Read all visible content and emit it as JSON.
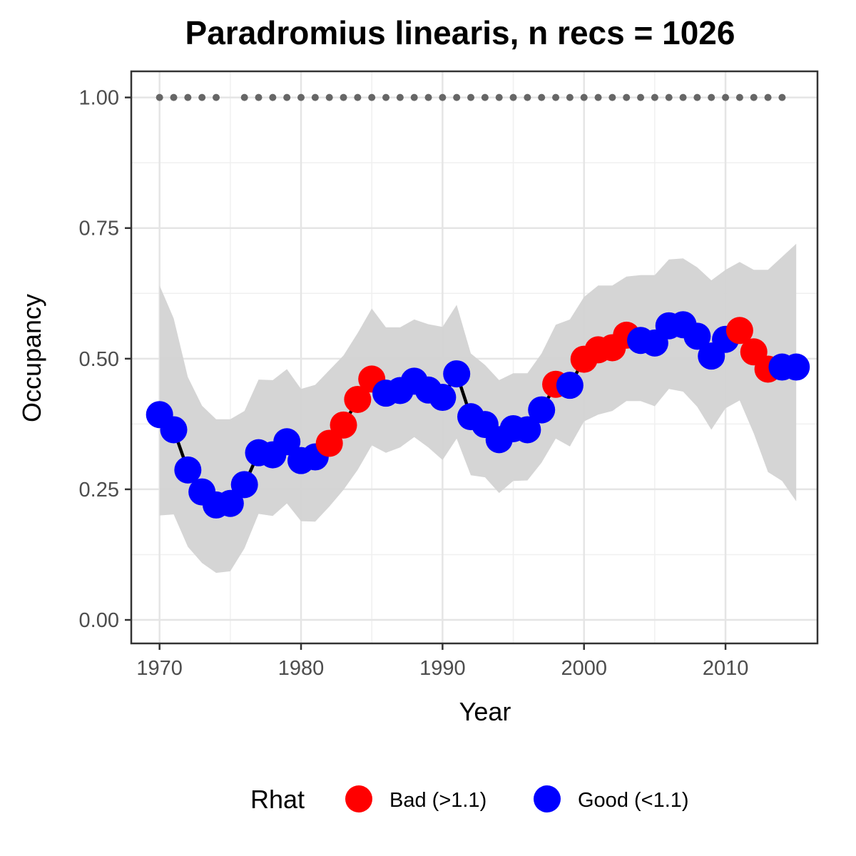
{
  "chart_data": {
    "type": "line",
    "title": "Paradromius linearis, n recs = 1026",
    "xlabel": "Year",
    "ylabel": "Occupancy",
    "xlim": [
      1968,
      2016.5
    ],
    "ylim": [
      -0.045,
      1.05
    ],
    "x_ticks": [
      1970,
      1980,
      1990,
      2000,
      2010
    ],
    "x_tick_labels": [
      "1970",
      "1980",
      "1990",
      "2000",
      "2010"
    ],
    "y_ticks": [
      0,
      0.25,
      0.5,
      0.75,
      1.0
    ],
    "y_tick_labels": [
      "0.00",
      "0.25",
      "0.50",
      "0.75",
      "1.00"
    ],
    "grid": true,
    "legend_position": "bottom",
    "legend": {
      "title": "Rhat",
      "entries": [
        {
          "label": "Bad (>1.1)",
          "color": "#ff0000"
        },
        {
          "label": "Good (<1.1)",
          "color": "#0000ff"
        }
      ]
    },
    "colors": {
      "bad": "#ff0000",
      "good": "#0000ff",
      "ribbon": "#d3d3d3",
      "line": "#000000",
      "record_dots": "#666666"
    },
    "years": [
      1970,
      1971,
      1972,
      1973,
      1974,
      1975,
      1976,
      1977,
      1978,
      1979,
      1980,
      1981,
      1982,
      1983,
      1984,
      1985,
      1986,
      1987,
      1988,
      1989,
      1990,
      1991,
      1992,
      1993,
      1994,
      1995,
      1996,
      1997,
      1998,
      1999,
      2000,
      2001,
      2002,
      2003,
      2004,
      2005,
      2006,
      2007,
      2008,
      2009,
      2010,
      2011,
      2012,
      2013,
      2014,
      2015
    ],
    "occupancy": [
      0.393,
      0.364,
      0.287,
      0.245,
      0.22,
      0.223,
      0.259,
      0.32,
      0.316,
      0.341,
      0.305,
      0.312,
      0.338,
      0.373,
      0.422,
      0.461,
      0.434,
      0.439,
      0.457,
      0.44,
      0.426,
      0.471,
      0.389,
      0.374,
      0.345,
      0.366,
      0.364,
      0.402,
      0.451,
      0.449,
      0.499,
      0.517,
      0.521,
      0.545,
      0.535,
      0.53,
      0.563,
      0.565,
      0.543,
      0.505,
      0.537,
      0.554,
      0.513,
      0.48,
      0.484,
      0.484
    ],
    "rhat_status": [
      "good",
      "good",
      "good",
      "good",
      "good",
      "good",
      "good",
      "good",
      "good",
      "good",
      "good",
      "good",
      "bad",
      "bad",
      "bad",
      "bad",
      "good",
      "good",
      "good",
      "good",
      "good",
      "good",
      "good",
      "good",
      "good",
      "good",
      "good",
      "good",
      "bad",
      "good",
      "bad",
      "bad",
      "bad",
      "bad",
      "good",
      "good",
      "good",
      "good",
      "good",
      "good",
      "good",
      "bad",
      "bad",
      "bad",
      "good",
      "good"
    ],
    "lower": [
      0.2,
      0.202,
      0.14,
      0.109,
      0.09,
      0.093,
      0.137,
      0.203,
      0.199,
      0.223,
      0.189,
      0.188,
      0.217,
      0.249,
      0.287,
      0.334,
      0.32,
      0.33,
      0.35,
      0.33,
      0.306,
      0.347,
      0.277,
      0.273,
      0.243,
      0.266,
      0.267,
      0.301,
      0.347,
      0.332,
      0.38,
      0.393,
      0.4,
      0.419,
      0.419,
      0.409,
      0.442,
      0.437,
      0.408,
      0.364,
      0.405,
      0.42,
      0.357,
      0.283,
      0.266,
      0.227
    ],
    "upper": [
      0.64,
      0.577,
      0.465,
      0.41,
      0.384,
      0.384,
      0.4,
      0.46,
      0.459,
      0.48,
      0.442,
      0.45,
      0.478,
      0.506,
      0.549,
      0.596,
      0.56,
      0.56,
      0.575,
      0.566,
      0.561,
      0.603,
      0.51,
      0.488,
      0.459,
      0.472,
      0.472,
      0.51,
      0.565,
      0.575,
      0.618,
      0.64,
      0.64,
      0.657,
      0.66,
      0.66,
      0.69,
      0.692,
      0.675,
      0.65,
      0.67,
      0.685,
      0.67,
      0.67,
      0.695,
      0.72
    ],
    "record_years": [
      1970,
      1971,
      1972,
      1973,
      1974,
      1976,
      1977,
      1978,
      1979,
      1980,
      1981,
      1982,
      1983,
      1984,
      1985,
      1986,
      1987,
      1988,
      1989,
      1990,
      1991,
      1992,
      1993,
      1994,
      1995,
      1996,
      1997,
      1998,
      1999,
      2000,
      2001,
      2002,
      2003,
      2004,
      2005,
      2006,
      2007,
      2008,
      2009,
      2010,
      2011,
      2012,
      2013,
      2014
    ],
    "record_y": 1.0
  }
}
